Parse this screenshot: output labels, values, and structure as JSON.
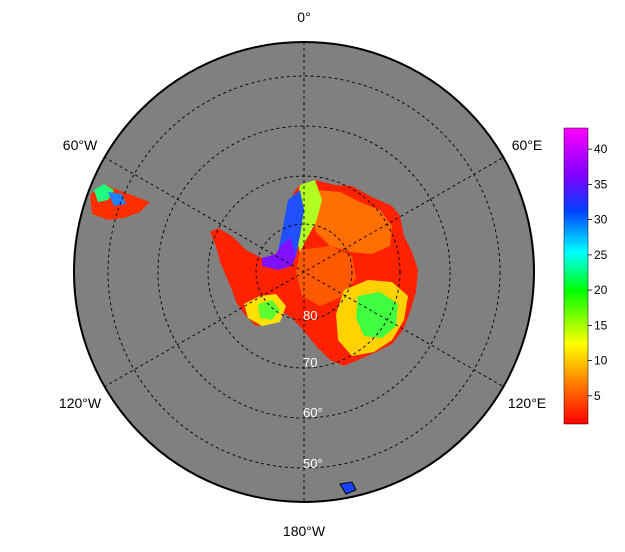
{
  "map": {
    "projection": "south polar stereographic",
    "ocean_color": "#808080",
    "land_mask_color": "#ffffff",
    "grid_style": "dashed",
    "longitude_labels": {
      "top": "0°",
      "upper_right": "60°E",
      "lower_right": "120°E",
      "bottom": "180°W",
      "lower_left": "120°W",
      "upper_left": "60°W"
    },
    "latitude_labels": [
      "80",
      "70",
      "60°",
      "50°"
    ]
  },
  "colorbar": {
    "ticks": [
      "5",
      "10",
      "15",
      "20",
      "25",
      "30",
      "35",
      "40"
    ],
    "tick_values": [
      5,
      10,
      15,
      20,
      25,
      30,
      35,
      40
    ],
    "range": [
      1,
      43
    ],
    "colors": [
      "#ff0000",
      "#ff8000",
      "#ffff00",
      "#00ff00",
      "#00ffff",
      "#0040ff",
      "#8000ff",
      "#ff00ff"
    ]
  }
}
